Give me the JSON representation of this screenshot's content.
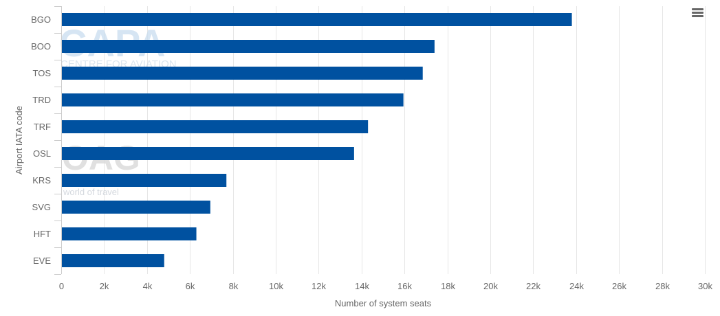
{
  "chart_data": {
    "type": "bar",
    "orientation": "horizontal",
    "categories": [
      "BGO",
      "BOO",
      "TOS",
      "TRD",
      "TRF",
      "OSL",
      "KRS",
      "SVG",
      "HFT",
      "EVE"
    ],
    "values": [
      23800,
      17400,
      16850,
      15950,
      14300,
      13650,
      7700,
      6950,
      6300,
      4800
    ],
    "xlabel": "Number of system seats",
    "ylabel": "Airport IATA code",
    "xlim": [
      0,
      30000
    ],
    "x_ticks": [
      "0",
      "2k",
      "4k",
      "6k",
      "8k",
      "10k",
      "12k",
      "14k",
      "16k",
      "18k",
      "20k",
      "22k",
      "24k",
      "26k",
      "28k",
      "30k"
    ],
    "grid": true,
    "legend": "none",
    "bar_color": "#0051a0",
    "grid_color": "#e6e6e6"
  },
  "watermarks": {
    "capa_logo": "CAPA",
    "capa_sub": "CENTRE FOR AVIATION",
    "oag_logo": "OAG",
    "oag_sub": "world of travel"
  },
  "menu": {
    "icon": "hamburger-menu-icon"
  }
}
